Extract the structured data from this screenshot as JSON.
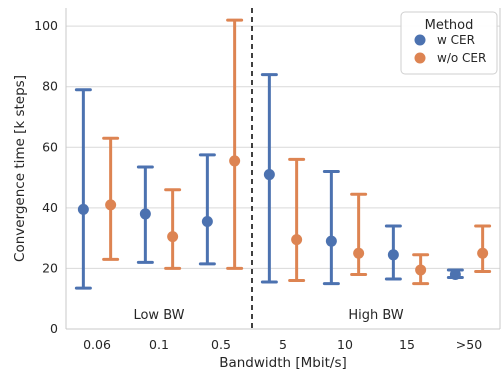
{
  "chart_data": {
    "type": "scatter",
    "subtype": "point-with-error-bars",
    "title": "",
    "xlabel": "Bandwidth [Mbit/s]",
    "ylabel": "Convergence time [k steps]",
    "ylim": [
      0,
      106
    ],
    "yticks": [
      0,
      20,
      40,
      60,
      80,
      100
    ],
    "grid": true,
    "categories": [
      "0.06",
      "0.1",
      "0.5",
      "5",
      "10",
      "15",
      ">50"
    ],
    "series": [
      {
        "name": "w CER",
        "color": "#4c72b0",
        "values": [
          39.5,
          38,
          35.5,
          51,
          29,
          24.5,
          18
        ],
        "lower": [
          13.5,
          22,
          21.5,
          15.5,
          15,
          16.5,
          17
        ],
        "upper": [
          79,
          53.5,
          57.5,
          84,
          52,
          34,
          19.5
        ]
      },
      {
        "name": "w/o CER",
        "color": "#dd8452",
        "values": [
          41,
          30.5,
          55.5,
          29.5,
          25,
          19.5,
          25
        ],
        "lower": [
          23,
          20,
          20,
          16,
          18,
          15,
          19
        ],
        "upper": [
          63,
          46,
          102,
          56,
          44.5,
          24.5,
          34
        ]
      }
    ],
    "divider_after_category": "0.5",
    "region_labels": [
      "Low BW",
      "High BW"
    ],
    "legend": {
      "title": "Method",
      "position": "top-right"
    }
  }
}
